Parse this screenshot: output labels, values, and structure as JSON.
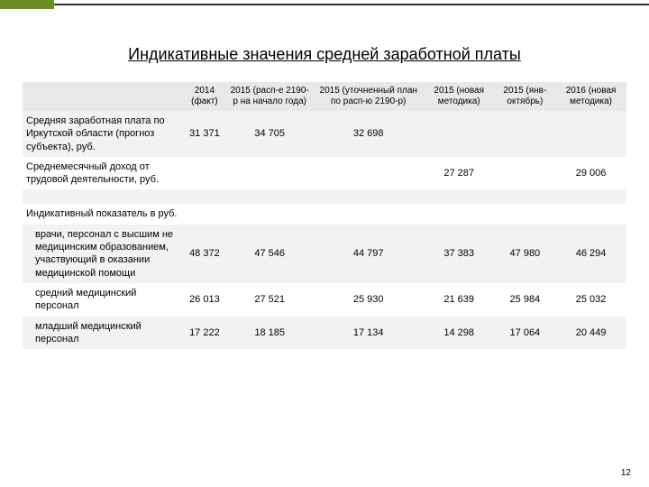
{
  "title": "Индикативные значения средней заработной платы",
  "columns": [
    "",
    "2014 (факт)",
    "2015 (расп-е 2190-р на начало года)",
    "2015 (уточненный план по расп-ю 2190-р)",
    "2015 (новая методика)",
    "2015 (янв-октябрь)",
    "2016 (новая методика)"
  ],
  "rows": [
    {
      "label": "Средняя заработная плата по Иркутской области (прогноз субъекта), руб.",
      "indent": false,
      "cells": [
        "31 371",
        "34 705",
        "32 698",
        "",
        "",
        ""
      ],
      "stripe": true
    },
    {
      "label": "Среднемесячный доход от трудовой деятельности, руб.",
      "indent": false,
      "cells": [
        "",
        "",
        "",
        "27 287",
        "",
        "29 006"
      ],
      "stripe": false
    },
    {
      "label": "",
      "indent": false,
      "cells": [
        "",
        "",
        "",
        "",
        "",
        ""
      ],
      "stripe": true,
      "spacer": true
    },
    {
      "label": "Индикативный показатель в руб.",
      "indent": false,
      "cells": [
        "",
        "",
        "",
        "",
        "",
        ""
      ],
      "stripe": false
    },
    {
      "label": "врачи, персонал с высшим не медицинским образованием, участвующий в оказании медицинской помощи",
      "indent": true,
      "cells": [
        "48 372",
        "47 546",
        "44 797",
        "37 383",
        "47 980",
        "46 294"
      ],
      "stripe": true
    },
    {
      "label": "средний медицинский персонал",
      "indent": true,
      "cells": [
        "26 013",
        "27 521",
        "25 930",
        "21 639",
        "25 984",
        "25 032"
      ],
      "stripe": false
    },
    {
      "label": "младший медицинский персонал",
      "indent": true,
      "cells": [
        "17 222",
        "18 185",
        "17 134",
        "14 298",
        "17 064",
        "20 449"
      ],
      "stripe": true
    }
  ],
  "page_number": "12",
  "header_bg": "#e8e8e8",
  "stripe_bg": "#f2f2f2",
  "plain_bg": "#ffffff",
  "accent_green": "#6b8e23"
}
